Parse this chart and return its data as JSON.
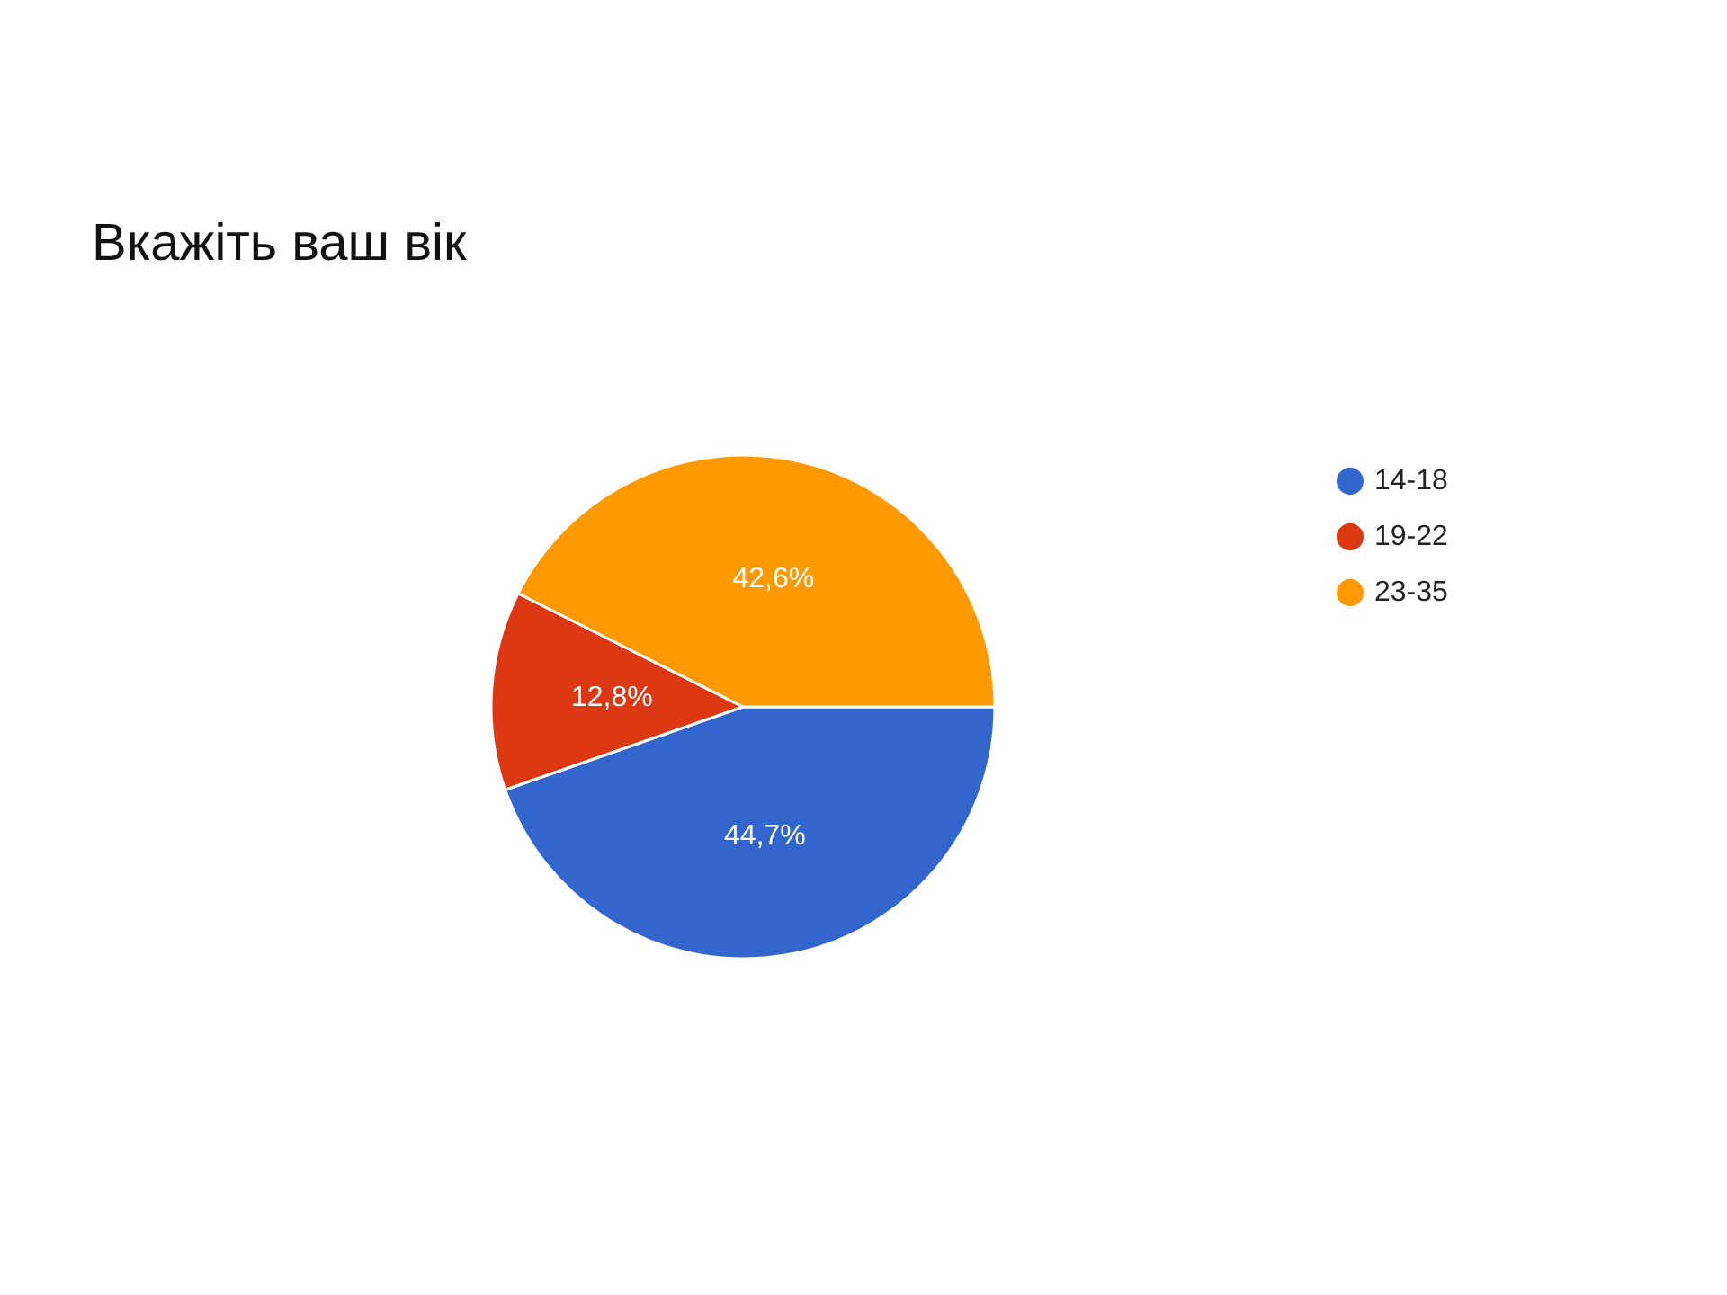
{
  "chart_data": {
    "type": "pie",
    "title": "Вкажіть ваш вік",
    "categories": [
      "14-18",
      "19-22",
      "23-35"
    ],
    "values": [
      44.7,
      12.8,
      42.6
    ],
    "colors": [
      "#3366cc",
      "#dc3912",
      "#ff9900"
    ],
    "value_labels": [
      "44,7%",
      "12,8%",
      "42,6%"
    ],
    "legend": "right"
  }
}
